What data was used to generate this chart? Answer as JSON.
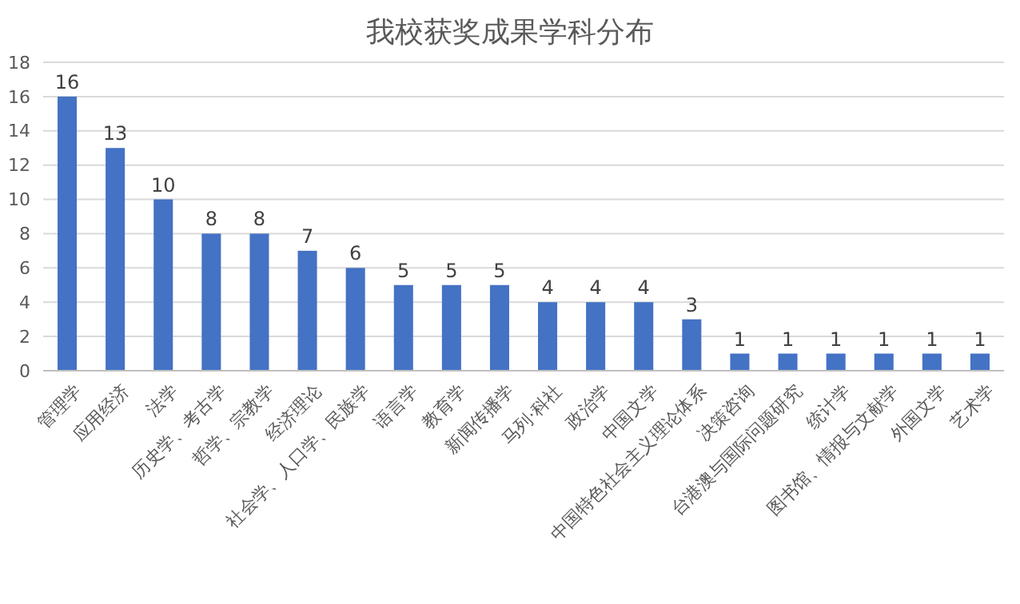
{
  "chart_data": {
    "type": "bar",
    "title": "我校获奖成果学科分布",
    "categories": [
      "管理学",
      "应用经济",
      "法学",
      "历史学、考古学",
      "哲学、宗教学",
      "经济理论",
      "社会学、人口学、民族学",
      "语言学",
      "教育学",
      "新闻传播学",
      "马列·科社",
      "政治学",
      "中国文学",
      "中国特色社会主义理论体系",
      "决策咨询",
      "台港澳与国际问题研究",
      "统计学",
      "图书馆、情报与文献学",
      "外国文学",
      "艺术学"
    ],
    "values": [
      16,
      13,
      10,
      8,
      8,
      7,
      6,
      5,
      5,
      5,
      4,
      4,
      4,
      3,
      1,
      1,
      1,
      1,
      1,
      1
    ],
    "color": "#4472c4",
    "ylim": [
      0,
      18
    ],
    "yticks": [
      0,
      2,
      4,
      6,
      8,
      10,
      12,
      14,
      16,
      18
    ],
    "grid": "y",
    "data_labels": true
  }
}
